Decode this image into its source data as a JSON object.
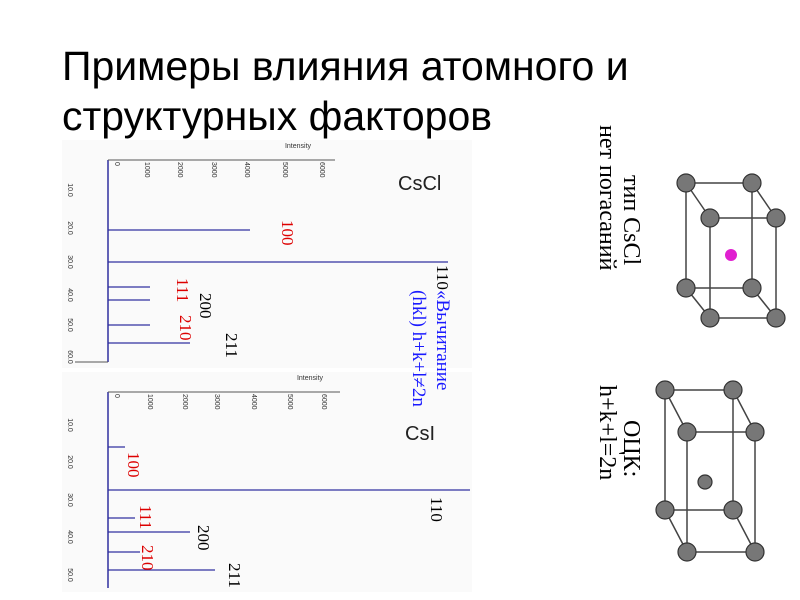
{
  "title": [
    "Примеры влияния атомного и",
    "структурных факторов"
  ],
  "plots": [
    {
      "label": "CsCl",
      "axis_title": "Intensity",
      "intensity_ticks": [
        "0",
        "1000",
        "2000",
        "3000",
        "4000",
        "5000",
        "6000"
      ],
      "angle_ticks": [
        "10.0",
        "20.0",
        "30.0",
        "40.0",
        "50.0",
        "60.0"
      ],
      "peaks": [
        "100",
        "110",
        "111",
        "200",
        "210",
        "211"
      ],
      "note": [
        "«Вычитание",
        "(hkl) h+k+l≠2n"
      ]
    },
    {
      "label": "CsI",
      "axis_title": "Intensity",
      "intensity_ticks": [
        "0",
        "1000",
        "2000",
        "3000",
        "4000",
        "5000",
        "6000"
      ],
      "angle_ticks": [
        "10.0",
        "20.0",
        "30.0",
        "40.0",
        "50.0"
      ],
      "peaks": [
        "100",
        "110",
        "111",
        "200",
        "210",
        "211"
      ]
    }
  ],
  "captions": [
    {
      "lines": [
        "тип CsCl",
        "нет погасаний"
      ]
    },
    {
      "lines": [
        "ОЦК:",
        "h+k+l=2n"
      ]
    }
  ]
}
